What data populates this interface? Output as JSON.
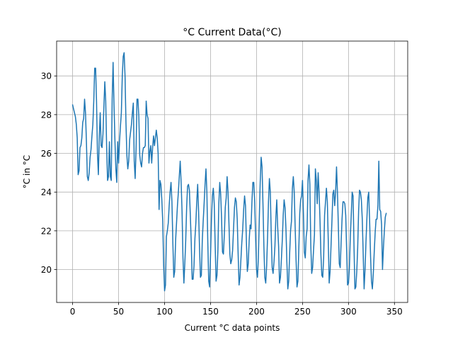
{
  "chart_data": {
    "type": "line",
    "title": "°C Current Data(°C)",
    "xlabel": "Current °C data points",
    "ylabel": "°C in °C",
    "xlim": [
      -17.4,
      364.4
    ],
    "ylim": [
      18.3,
      31.8
    ],
    "xticks": [
      0,
      50,
      100,
      150,
      200,
      250,
      300,
      350
    ],
    "yticks": [
      20,
      22,
      24,
      26,
      28,
      30
    ],
    "grid": true,
    "line_color": "#1f77b4",
    "series": [
      {
        "values": [
          28.5,
          28.3,
          28.1,
          27.9,
          27.5,
          26.8,
          24.9,
          25.1,
          26.3,
          26.4,
          26.8,
          27.6,
          27.8,
          28.8,
          28.1,
          26.6,
          24.8,
          24.6,
          25.0,
          25.8,
          26.2,
          26.9,
          27.5,
          28.7,
          30.4,
          30.4,
          28.7,
          26.0,
          24.9,
          26.9,
          28.1,
          26.4,
          26.3,
          27.0,
          28.4,
          29.7,
          28.7,
          26.3,
          24.6,
          24.8,
          26.6,
          24.8,
          24.6,
          28.8,
          30.7,
          28.5,
          26.7,
          25.2,
          24.5,
          26.6,
          25.5,
          26.6,
          27.4,
          28.1,
          30.0,
          31.0,
          31.2,
          30.0,
          27.6,
          25.9,
          25.2,
          25.6,
          26.7,
          27.1,
          27.5,
          28.1,
          28.6,
          25.6,
          24.7,
          26.2,
          28.8,
          28.8,
          27.9,
          25.9,
          25.5,
          25.3,
          26.0,
          26.3,
          26.3,
          26.4,
          28.7,
          28.0,
          27.8,
          25.5,
          26.1,
          26.4,
          25.5,
          26.3,
          26.9,
          26.4,
          26.8,
          27.2,
          26.8,
          26.0,
          23.1,
          24.6,
          24.4,
          23.6,
          22.5,
          20.2,
          18.9,
          19.2,
          21.7,
          22.0,
          22.4,
          23.3,
          24.0,
          24.5,
          23.5,
          21.4,
          19.6,
          19.9,
          21.5,
          22.4,
          23.3,
          24.0,
          24.8,
          25.6,
          24.5,
          23.0,
          20.6,
          19.3,
          20.3,
          21.5,
          23.2,
          24.3,
          24.4,
          24.1,
          22.8,
          21.4,
          19.5,
          19.5,
          20.2,
          21.6,
          22.4,
          23.5,
          24.4,
          23.0,
          21.1,
          19.6,
          19.7,
          21.5,
          22.5,
          23.4,
          24.4,
          25.2,
          24.0,
          21.4,
          19.4,
          19.1,
          20.8,
          22.6,
          23.8,
          24.2,
          23.4,
          21.3,
          19.4,
          19.7,
          21.0,
          23.4,
          24.5,
          23.9,
          22.6,
          20.9,
          20.8,
          21.8,
          23.2,
          23.7,
          24.8,
          24.0,
          22.4,
          20.8,
          20.3,
          20.5,
          21.0,
          22.1,
          23.2,
          23.7,
          23.5,
          22.6,
          20.8,
          19.2,
          19.6,
          20.5,
          21.4,
          22.1,
          23.1,
          23.8,
          23.3,
          21.4,
          19.9,
          20.3,
          21.5,
          22.3,
          22.1,
          23.5,
          24.5,
          24.5,
          23.5,
          21.7,
          20.0,
          19.6,
          20.6,
          22.6,
          24.5,
          25.8,
          25.3,
          23.4,
          21.2,
          19.6,
          19.3,
          20.2,
          21.7,
          23.5,
          24.7,
          24.0,
          21.8,
          20.1,
          19.8,
          20.4,
          21.2,
          22.7,
          23.6,
          22.2,
          21.2,
          19.3,
          19.6,
          20.5,
          21.5,
          22.8,
          23.6,
          23.2,
          22.1,
          20.4,
          19.0,
          19.4,
          20.8,
          22.0,
          22.5,
          24.2,
          24.8,
          24.0,
          22.2,
          20.5,
          19.1,
          19.4,
          21.1,
          22.9,
          23.6,
          23.8,
          24.6,
          22.9,
          20.9,
          20.6,
          21.7,
          22.1,
          24.6,
          25.4,
          24.4,
          21.3,
          19.8,
          20.1,
          21.0,
          21.8,
          25.2,
          24.6,
          23.4,
          25.0,
          24.0,
          22.6,
          20.8,
          19.7,
          19.6,
          20.6,
          22.8,
          23.5,
          24.2,
          23.5,
          21.5,
          19.3,
          19.9,
          21.2,
          22.5,
          23.9,
          24.1,
          23.3,
          24.0,
          25.3,
          24.0,
          22.2,
          20.3,
          20.1,
          21.4,
          22.6,
          23.5,
          23.5,
          23.4,
          22.8,
          21.0,
          19.2,
          19.3,
          20.1,
          21.7,
          22.8,
          24.0,
          23.8,
          21.2,
          19.0,
          19.1,
          19.9,
          21.1,
          23.0,
          24.1,
          24.0,
          23.6,
          22.6,
          20.8,
          19.0,
          20.0,
          21.4,
          22.6,
          23.7,
          24.0,
          22.5,
          20.7,
          19.4,
          19.0,
          19.8,
          20.9,
          21.9,
          22.6,
          22.6,
          23.3,
          25.6,
          23.1,
          23.0,
          22.3,
          20.0,
          21.1,
          22.0,
          22.7,
          22.9
        ]
      }
    ]
  }
}
